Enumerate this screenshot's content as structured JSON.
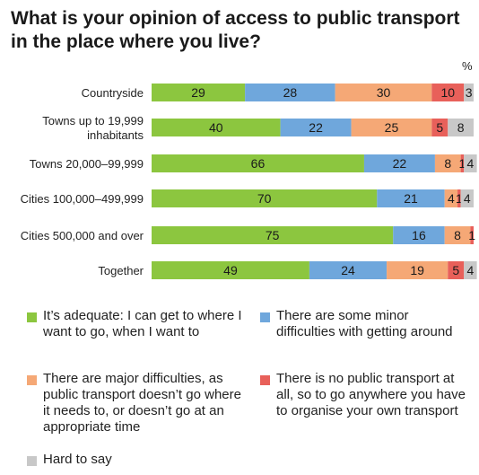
{
  "title": "What is your opinion of access to public transport in the place where you live?",
  "unit_label": "%",
  "colors": {
    "adequate": "#8cc63f",
    "minor": "#6fa7dc",
    "major": "#f5a876",
    "none": "#e8605a",
    "hard": "#c8c8c8"
  },
  "legend": [
    {
      "key": "adequate",
      "label": "It’s adequate: I can get to where I want to go, when I want to"
    },
    {
      "key": "minor",
      "label": "There are some minor difficulties with getting around"
    },
    {
      "key": "major",
      "label": "There are major difficulties, as public transport doesn’t go where it needs to, or doesn’t go at an appropriate time"
    },
    {
      "key": "none",
      "label": "There is no public transport at all, so to go anywhere you have to organise your own transport"
    },
    {
      "key": "hard",
      "label": "Hard to say"
    }
  ],
  "chart_data": {
    "type": "bar",
    "orientation": "horizontal",
    "stacked": true,
    "title": "What is your opinion of access to public transport in the place where you live?",
    "unit": "%",
    "xlim": [
      0,
      100
    ],
    "grid": false,
    "legend_placement": "bottom",
    "categories": [
      [
        "Countryside"
      ],
      [
        "Towns up to 19,999",
        "inhabitants"
      ],
      [
        "Towns 20,000–99,999"
      ],
      [
        "Cities 100,000–499,999"
      ],
      [
        "Cities 500,000 and over"
      ],
      [
        "Together"
      ]
    ],
    "series": [
      {
        "key": "adequate",
        "name": "It’s adequate: I can get to where I want to go, when I want to",
        "values": [
          29,
          40,
          66,
          70,
          75,
          49
        ]
      },
      {
        "key": "minor",
        "name": "There are some minor difficulties with getting around",
        "values": [
          28,
          22,
          22,
          21,
          16,
          24
        ]
      },
      {
        "key": "major",
        "name": "There are major difficulties, as public transport doesn’t go where it needs to, or doesn’t go at an appropriate time",
        "values": [
          30,
          25,
          8,
          4,
          8,
          19
        ]
      },
      {
        "key": "none",
        "name": "There is no public transport at all, so to go anywhere you have to organise your own transport",
        "values": [
          10,
          5,
          1,
          1,
          1,
          5
        ]
      },
      {
        "key": "hard",
        "name": "Hard to say",
        "values": [
          3,
          8,
          4,
          4,
          0,
          4
        ]
      }
    ]
  }
}
